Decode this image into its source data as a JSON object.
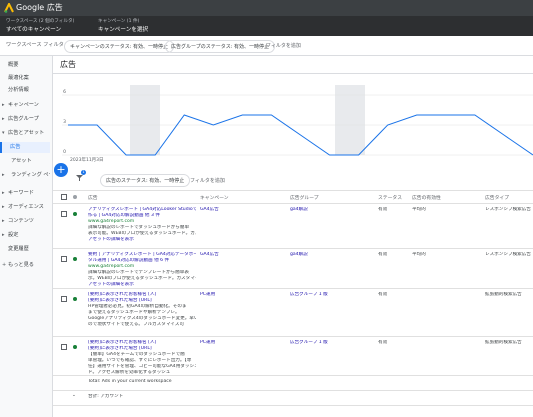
{
  "header": {
    "logo": "Google 広告"
  },
  "scope": {
    "workspace_label": "ワークスペース (2 個のフィルタ)",
    "workspace_value": "すべてのキャンペーン",
    "campaign_label": "キャンペーン (1 件)",
    "campaign_value": "キャンペーンを選択"
  },
  "filters": {
    "label": "ワークスペース フィルタ",
    "chips": [
      "キャンペーンのステータス: 有効、一時停止",
      "広告グループのステータス: 有効、一時停止"
    ],
    "add": "フィルタを追加"
  },
  "sidebar": {
    "items": [
      "概要",
      "最適化案",
      "分析情報",
      "キャンペーン",
      "広告グループ",
      "広告とアセット",
      "広告",
      "アセット",
      "ランディング ページ",
      "キーワード",
      "オーディエンス",
      "コンテンツ",
      "設定",
      "変更履歴",
      "もっと見る"
    ]
  },
  "page_title": "広告",
  "chart": {
    "type": "line",
    "values": [
      3,
      3,
      0,
      0,
      4,
      3,
      4,
      4,
      2,
      0,
      0,
      3,
      4,
      4,
      4,
      2,
      0
    ],
    "ylim": [
      0,
      7
    ],
    "yticks": [
      0,
      3,
      6
    ],
    "start_label": "2023年11月3日",
    "color": "#1a73e8"
  },
  "toolbar": {
    "filter_count": "1",
    "filter_chip": "広告のステータス: 有効、一時停止",
    "add_filter": "フィルタを追加"
  },
  "table": {
    "headers": [
      "広告",
      "キャンペーン",
      "広告グループ",
      "ステータス",
      "広告の有効性",
      "広告タイプ"
    ],
    "rows": [
      {
        "ad": [
          "アナリティクスレポート | GA4対応Looker Studioで",
          "作る | GA4対応の解説動画 他 3 件",
          "www.ga4report.com",
          "詳細な解説のレポートでダッシュボードから簡単",
          "表示可能。WEBのプロが使えるダッシュボード。カス...",
          "アセットの詳細を表示"
        ],
        "campaign": "GA4広告",
        "group": "ga4解説",
        "status": "有効",
        "effectiveness": "平均的",
        "type": "レスポンシブ検索広告"
      },
      {
        "ad": [
          "要約 | アナリティクスレポート | GA4対応データポー",
          "タル運用 | GA4対応の解説動画 他 6 件",
          "www.ga4report.com",
          "詳細な解説のレポートでテンプレートから簡単表",
          "示。WEBのプロが使えるダッシュボード。カスタマイ...",
          "アセットの詳細を表示"
        ],
        "campaign": "GA4広告",
        "group": "ga4解説",
        "status": "有効",
        "effectiveness": "平均的",
        "type": "レスポンシブ検索広告"
      },
      {
        "ad": [
          "[要約]に表示されたお客様名 [人]",
          "[要約]に表示された場合 [URL]",
          "HP管理者必必見。初GA4の解析自動化。そのま",
          "まで使えるダッシュボードや解析テンプレ。",
          "Googleアナリティクス4のダッシュボード変更。早い",
          "ので現状サイトで使える。フルカスタマイズ可"
        ],
        "campaign": "PC運用",
        "group": "広告グループ 1 版",
        "status": "有効",
        "effectiveness": "",
        "type": "拡張動的検索広告"
      },
      {
        "ad": [
          "[要約]に表示されたお客様名 [人]",
          "[要約]に表示された場合 [URL]",
          "【簡単】GA4をチームでのダッシュボードで簡",
          "単管理。いつでも確認、すぐにレポート出力。【専",
          "任】運用サイトを管理、コピー可能なGA4用ダッシュボー",
          "ド。アクセス解析を効率化するダッシュ"
        ],
        "campaign": "PC運用",
        "group": "広告グループ 1 版",
        "status": "有効",
        "effectiveness": "",
        "type": "拡張動的検索広告"
      }
    ],
    "total": "Total: Ads in your current workspace",
    "account": "合計: アカウント"
  }
}
